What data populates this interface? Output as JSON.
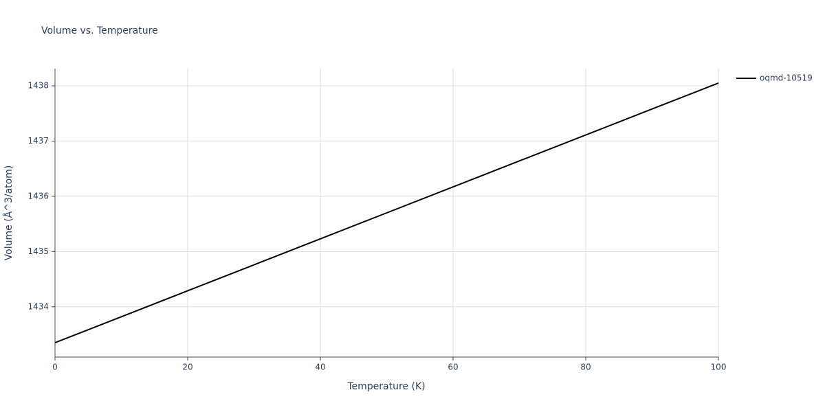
{
  "chart_data": {
    "type": "line",
    "title": "Volume vs. Temperature",
    "x_label": "Temperature (K)",
    "y_label": "Volume (Å^3/atom)",
    "x": [
      0,
      10,
      20,
      30,
      40,
      50,
      60,
      70,
      80,
      90,
      100
    ],
    "series": [
      {
        "name": "oqmd-10519",
        "color": "#000000",
        "values": [
          1433.35,
          1433.82,
          1434.29,
          1434.76,
          1435.23,
          1435.7,
          1436.17,
          1436.64,
          1437.11,
          1437.58,
          1438.05
        ]
      }
    ],
    "xlim": [
      0,
      100
    ],
    "xticks": [
      0,
      20,
      40,
      60,
      80,
      100
    ],
    "ylim": [
      1433.09,
      1438.31
    ],
    "yticks": [
      1434,
      1435,
      1436,
      1437,
      1438
    ],
    "grid": true,
    "legend": "top-right"
  }
}
